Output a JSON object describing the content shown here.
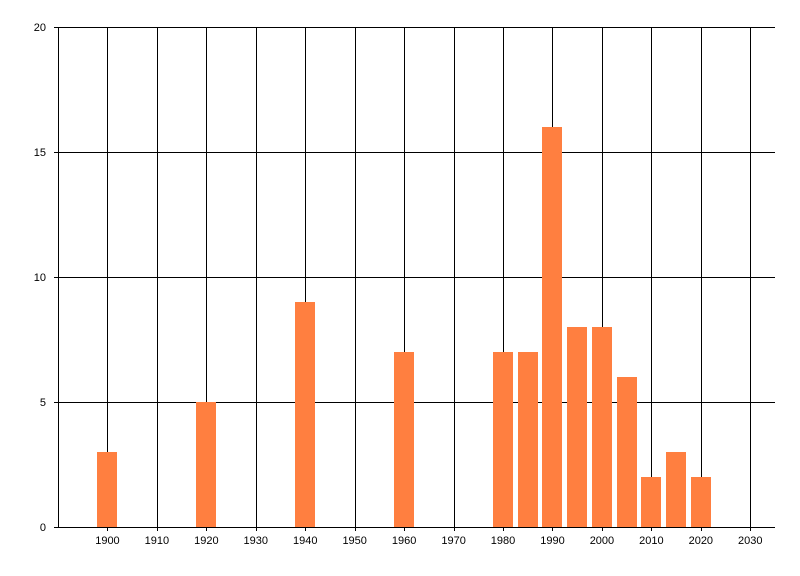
{
  "chart_data": {
    "type": "bar",
    "title": "",
    "xlabel": "",
    "ylabel": "",
    "x": [
      1900,
      1920,
      1940,
      1960,
      1980,
      1985,
      1990,
      1995,
      2000,
      2005,
      2010,
      2015,
      2020
    ],
    "values": [
      3,
      5,
      9,
      7,
      7,
      7,
      16,
      8,
      8,
      6,
      2,
      3,
      2
    ],
    "xlim": [
      1890,
      2035
    ],
    "ylim": [
      0,
      20
    ],
    "x_ticks": [
      1900,
      1910,
      1920,
      1930,
      1940,
      1950,
      1960,
      1970,
      1980,
      1990,
      2000,
      2010,
      2020,
      2030
    ],
    "y_ticks": [
      0,
      5,
      10,
      15,
      20
    ],
    "grid": true,
    "legend": "none",
    "colors": {
      "bar": "#ff7f40",
      "grid": "#000000",
      "background": "#ffffff"
    }
  }
}
